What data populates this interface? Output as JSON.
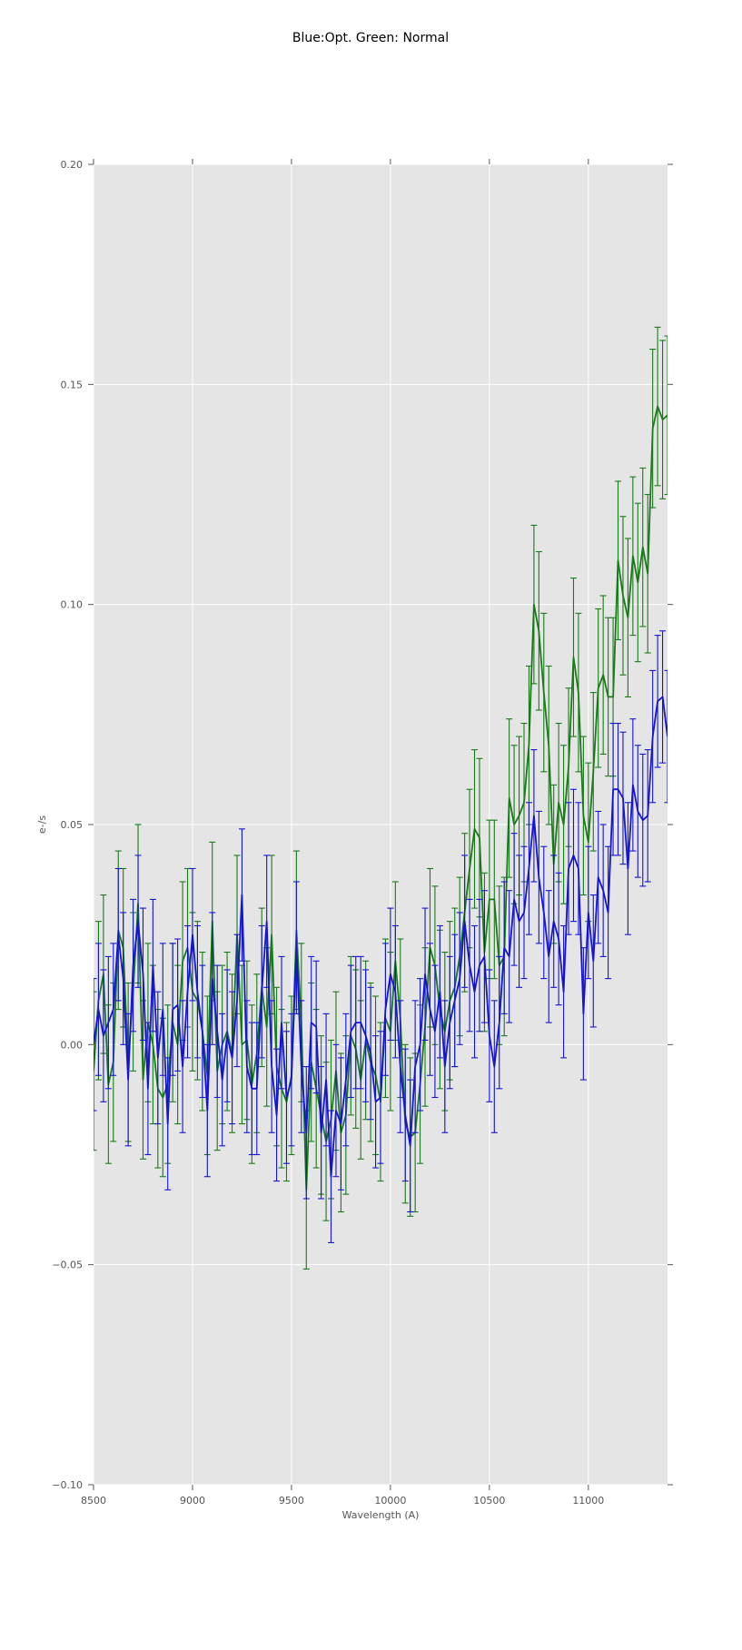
{
  "chart_data": {
    "type": "line",
    "title": "Blue:Opt. Green: Normal",
    "xlabel": "Wavelength (A)",
    "ylabel": "e-/s",
    "xlim": [
      8500,
      11400
    ],
    "ylim": [
      -0.1,
      0.2
    ],
    "x_ticks": [
      "8500",
      "9000",
      "9500",
      "10000",
      "10500",
      "11000"
    ],
    "y_ticks": [
      "−0.10",
      "−0.05",
      "0.00",
      "0.05",
      "0.10",
      "0.15",
      "0.20"
    ],
    "grid": true,
    "legend": "none",
    "colors": {
      "plot_background": "#e5e5e5",
      "grid": "#ffffff"
    },
    "series": [
      {
        "color": "#1a7a1a",
        "x": [
          8500,
          8525,
          8550,
          8575,
          8600,
          8625,
          8650,
          8675,
          8700,
          8725,
          8750,
          8775,
          8800,
          8825,
          8850,
          8875,
          8900,
          8925,
          8950,
          8975,
          9000,
          9025,
          9050,
          9075,
          9100,
          9125,
          9150,
          9175,
          9200,
          9225,
          9250,
          9275,
          9300,
          9325,
          9350,
          9375,
          9400,
          9425,
          9450,
          9475,
          9500,
          9525,
          9550,
          9575,
          9600,
          9625,
          9650,
          9675,
          9700,
          9725,
          9750,
          9775,
          9800,
          9825,
          9850,
          9875,
          9900,
          9925,
          9950,
          9975,
          10000,
          10025,
          10050,
          10075,
          10100,
          10125,
          10150,
          10175,
          10200,
          10225,
          10250,
          10275,
          10300,
          10325,
          10350,
          10375,
          10400,
          10425,
          10450,
          10475,
          10500,
          10525,
          10550,
          10575,
          10600,
          10625,
          10650,
          10675,
          10700,
          10725,
          10750,
          10775,
          10800,
          10825,
          10850,
          10875,
          10900,
          10925,
          10950,
          10975,
          11000,
          11025,
          11050,
          11075,
          11100,
          11125,
          11150,
          11175,
          11200,
          11225,
          11250,
          11275,
          11300,
          11325,
          11350,
          11375,
          11400
        ],
        "y": [
          -0.006,
          0.01,
          0.016,
          -0.009,
          -0.004,
          0.026,
          0.022,
          -0.004,
          0.012,
          0.032,
          -0.008,
          0.005,
          0.0,
          -0.01,
          -0.012,
          -0.009,
          0.005,
          0.0,
          0.019,
          0.022,
          0.012,
          0.01,
          0.003,
          -0.007,
          0.028,
          -0.006,
          0.0,
          0.003,
          -0.002,
          0.025,
          0.0,
          0.001,
          -0.009,
          -0.002,
          0.013,
          0.004,
          0.025,
          -0.005,
          -0.01,
          -0.013,
          -0.007,
          0.026,
          0.005,
          -0.033,
          -0.004,
          -0.01,
          -0.016,
          -0.022,
          -0.017,
          -0.006,
          -0.02,
          -0.016,
          0.002,
          -0.001,
          -0.008,
          0.001,
          -0.004,
          -0.007,
          -0.013,
          0.006,
          0.003,
          0.019,
          0.006,
          -0.018,
          -0.021,
          -0.02,
          -0.009,
          0.004,
          0.022,
          0.018,
          0.008,
          0.003,
          0.01,
          0.013,
          0.02,
          0.03,
          0.04,
          0.049,
          0.047,
          0.021,
          0.033,
          0.033,
          0.018,
          0.02,
          0.056,
          0.05,
          0.052,
          0.055,
          0.068,
          0.1,
          0.094,
          0.08,
          0.068,
          0.041,
          0.055,
          0.05,
          0.063,
          0.088,
          0.08,
          0.052,
          0.046,
          0.062,
          0.081,
          0.084,
          0.079,
          0.079,
          0.11,
          0.102,
          0.097,
          0.111,
          0.105,
          0.113,
          0.107,
          0.14,
          0.145,
          0.142,
          0.143
        ],
        "err": 0.018
      },
      {
        "color": "#1414d2",
        "x": [
          8500,
          8525,
          8550,
          8575,
          8600,
          8625,
          8650,
          8675,
          8700,
          8725,
          8750,
          8775,
          8800,
          8825,
          8850,
          8875,
          8900,
          8925,
          8950,
          8975,
          9000,
          9025,
          9050,
          9075,
          9100,
          9125,
          9150,
          9175,
          9200,
          9225,
          9250,
          9275,
          9300,
          9325,
          9350,
          9375,
          9400,
          9425,
          9450,
          9475,
          9500,
          9525,
          9550,
          9575,
          9600,
          9625,
          9650,
          9675,
          9700,
          9725,
          9750,
          9775,
          9800,
          9825,
          9850,
          9875,
          9900,
          9925,
          9950,
          9975,
          10000,
          10025,
          10050,
          10075,
          10100,
          10125,
          10150,
          10175,
          10200,
          10225,
          10250,
          10275,
          10300,
          10325,
          10350,
          10375,
          10400,
          10425,
          10450,
          10475,
          10500,
          10525,
          10550,
          10575,
          10600,
          10625,
          10650,
          10675,
          10700,
          10725,
          10750,
          10775,
          10800,
          10825,
          10850,
          10875,
          10900,
          10925,
          10950,
          10975,
          11000,
          11025,
          11050,
          11075,
          11100,
          11125,
          11150,
          11175,
          11200,
          11225,
          11250,
          11275,
          11300,
          11325,
          11350,
          11375,
          11400
        ],
        "y": [
          0.0,
          0.008,
          0.002,
          0.005,
          0.008,
          0.025,
          0.015,
          -0.008,
          0.018,
          0.028,
          0.016,
          -0.01,
          0.018,
          -0.003,
          0.008,
          -0.018,
          0.008,
          0.009,
          -0.005,
          0.012,
          0.025,
          0.012,
          0.003,
          -0.015,
          0.015,
          0.003,
          -0.008,
          0.002,
          -0.003,
          0.01,
          0.034,
          -0.005,
          -0.01,
          -0.01,
          0.012,
          0.028,
          -0.005,
          -0.016,
          0.005,
          -0.012,
          -0.008,
          0.022,
          -0.005,
          -0.02,
          0.005,
          0.004,
          -0.02,
          -0.008,
          -0.03,
          -0.015,
          -0.018,
          -0.008,
          0.003,
          0.005,
          0.005,
          0.002,
          -0.002,
          -0.013,
          -0.012,
          0.008,
          0.016,
          0.012,
          -0.005,
          -0.016,
          -0.023,
          -0.005,
          0.0,
          0.016,
          0.008,
          0.003,
          0.012,
          -0.005,
          0.005,
          0.01,
          0.015,
          0.028,
          0.018,
          0.012,
          0.018,
          0.02,
          0.002,
          -0.005,
          0.005,
          0.022,
          0.02,
          0.033,
          0.028,
          0.03,
          0.04,
          0.052,
          0.038,
          0.03,
          0.02,
          0.028,
          0.024,
          0.012,
          0.04,
          0.043,
          0.04,
          0.007,
          0.03,
          0.019,
          0.038,
          0.035,
          0.03,
          0.058,
          0.058,
          0.056,
          0.04,
          0.059,
          0.053,
          0.051,
          0.052,
          0.07,
          0.078,
          0.079,
          0.07
        ],
        "err": 0.015
      }
    ]
  }
}
